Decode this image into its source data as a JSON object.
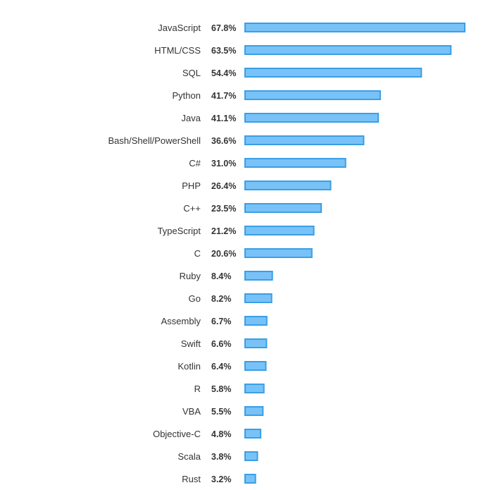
{
  "chart_data": {
    "type": "bar",
    "orientation": "horizontal",
    "categories": [
      "JavaScript",
      "HTML/CSS",
      "SQL",
      "Python",
      "Java",
      "Bash/Shell/PowerShell",
      "C#",
      "PHP",
      "C++",
      "TypeScript",
      "C",
      "Ruby",
      "Go",
      "Assembly",
      "Swift",
      "Kotlin",
      "R",
      "VBA",
      "Objective-C",
      "Scala",
      "Rust"
    ],
    "values": [
      67.8,
      63.5,
      54.4,
      41.7,
      41.1,
      36.6,
      31.0,
      26.4,
      23.5,
      21.2,
      20.6,
      8.4,
      8.2,
      6.7,
      6.6,
      6.4,
      5.8,
      5.5,
      4.8,
      3.8,
      3.2
    ],
    "value_labels": [
      "67.8%",
      "63.5%",
      "54.4%",
      "41.7%",
      "41.1%",
      "36.6%",
      "31.0%",
      "26.4%",
      "23.5%",
      "21.2%",
      "20.6%",
      "8.4%",
      "8.2%",
      "6.7%",
      "6.6%",
      "6.4%",
      "5.8%",
      "5.5%",
      "4.8%",
      "3.8%",
      "3.2%"
    ],
    "unit": "%",
    "title": "",
    "xlabel": "",
    "ylabel": "",
    "grid": false,
    "legend": "none",
    "colors": {
      "bar_fill": "#78c2f8",
      "bar_stroke": "#3a9fe6",
      "text": "#333333"
    }
  }
}
